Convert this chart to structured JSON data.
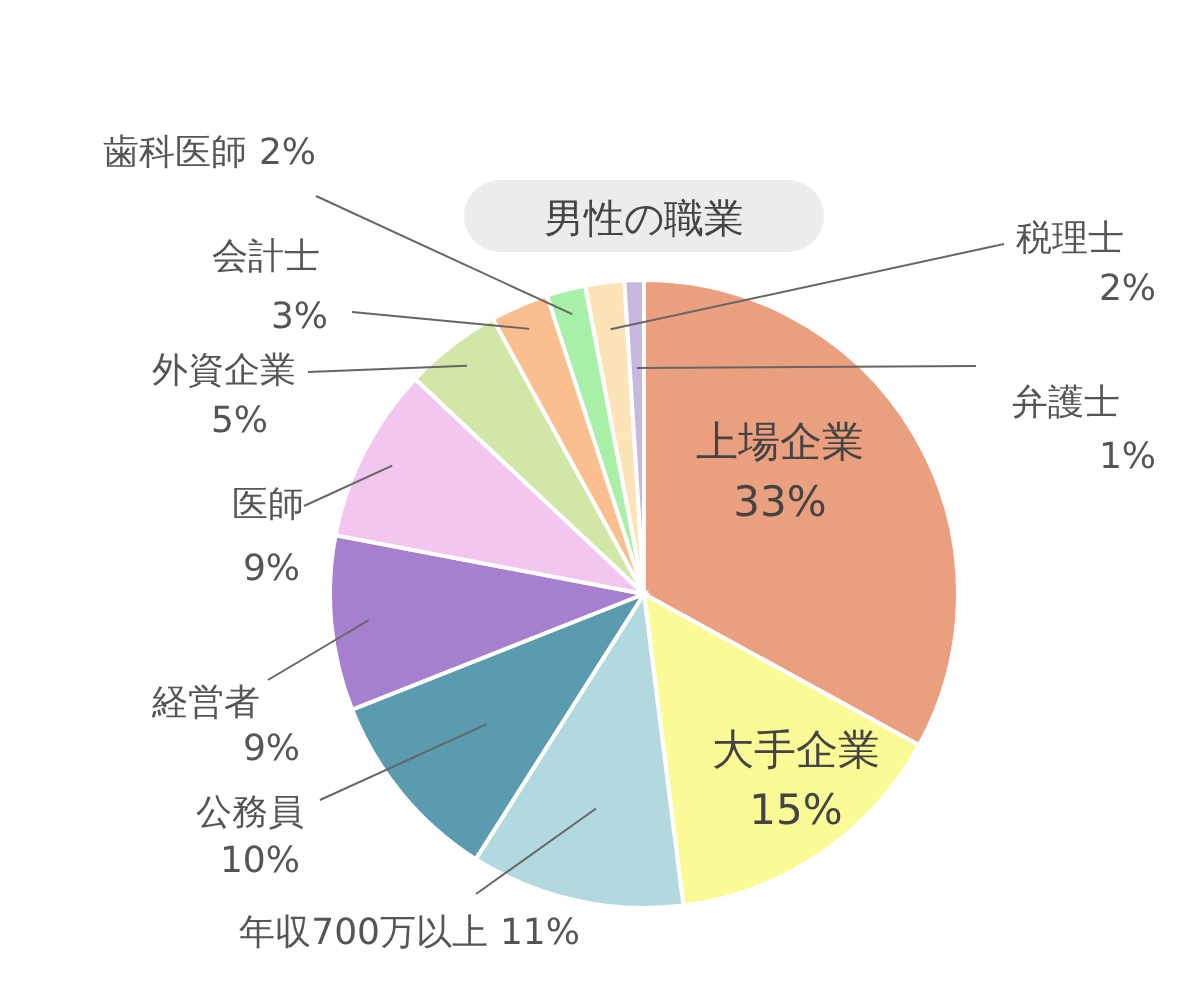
{
  "chart_data": {
    "type": "pie",
    "title": "男性の職業",
    "categories": [
      "上場企業",
      "大手企業",
      "年収700万以上",
      "公務員",
      "経営者",
      "医師",
      "外資企業",
      "会計士",
      "歯科医師",
      "税理士",
      "弁護士"
    ],
    "values": [
      33,
      15,
      11,
      10,
      9,
      9,
      5,
      3,
      2,
      2,
      1
    ],
    "value_labels": [
      "33%",
      "15%",
      "11%",
      "10%",
      "9%",
      "9%",
      "5%",
      "3%",
      "2%",
      "2%",
      "1%"
    ],
    "colors": [
      "#eaa07f",
      "#fafa96",
      "#b3d9e0",
      "#5a9bb0",
      "#a77fcf",
      "#f3c6f0",
      "#d2e6a8",
      "#fbbf8f",
      "#a8f0a8",
      "#fde3b8",
      "#c8b8e0"
    ]
  }
}
